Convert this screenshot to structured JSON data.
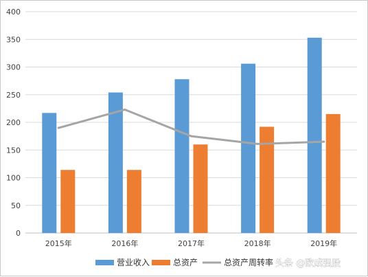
{
  "chart_data": {
    "type": "bar",
    "categories": [
      "2015年",
      "2016年",
      "2017年",
      "2018年",
      "2019年"
    ],
    "series": [
      {
        "name": "营业收入",
        "kind": "bar",
        "color": "#5b9bd5",
        "values": [
          217,
          254,
          278,
          306,
          353
        ]
      },
      {
        "name": "总资产",
        "kind": "bar",
        "color": "#ed7d31",
        "values": [
          114,
          114,
          160,
          192,
          215
        ]
      },
      {
        "name": "总资产周转率",
        "kind": "line",
        "color": "#a5a5a5",
        "values": [
          190,
          223,
          175,
          161,
          165
        ]
      }
    ],
    "ylim": [
      0,
      400
    ],
    "yticks": [
      "0",
      "50",
      "100",
      "150",
      "200",
      "250",
      "300",
      "350",
      "400"
    ],
    "grid": true,
    "legend": "bottom"
  },
  "watermark": "头条 @欧成强股"
}
